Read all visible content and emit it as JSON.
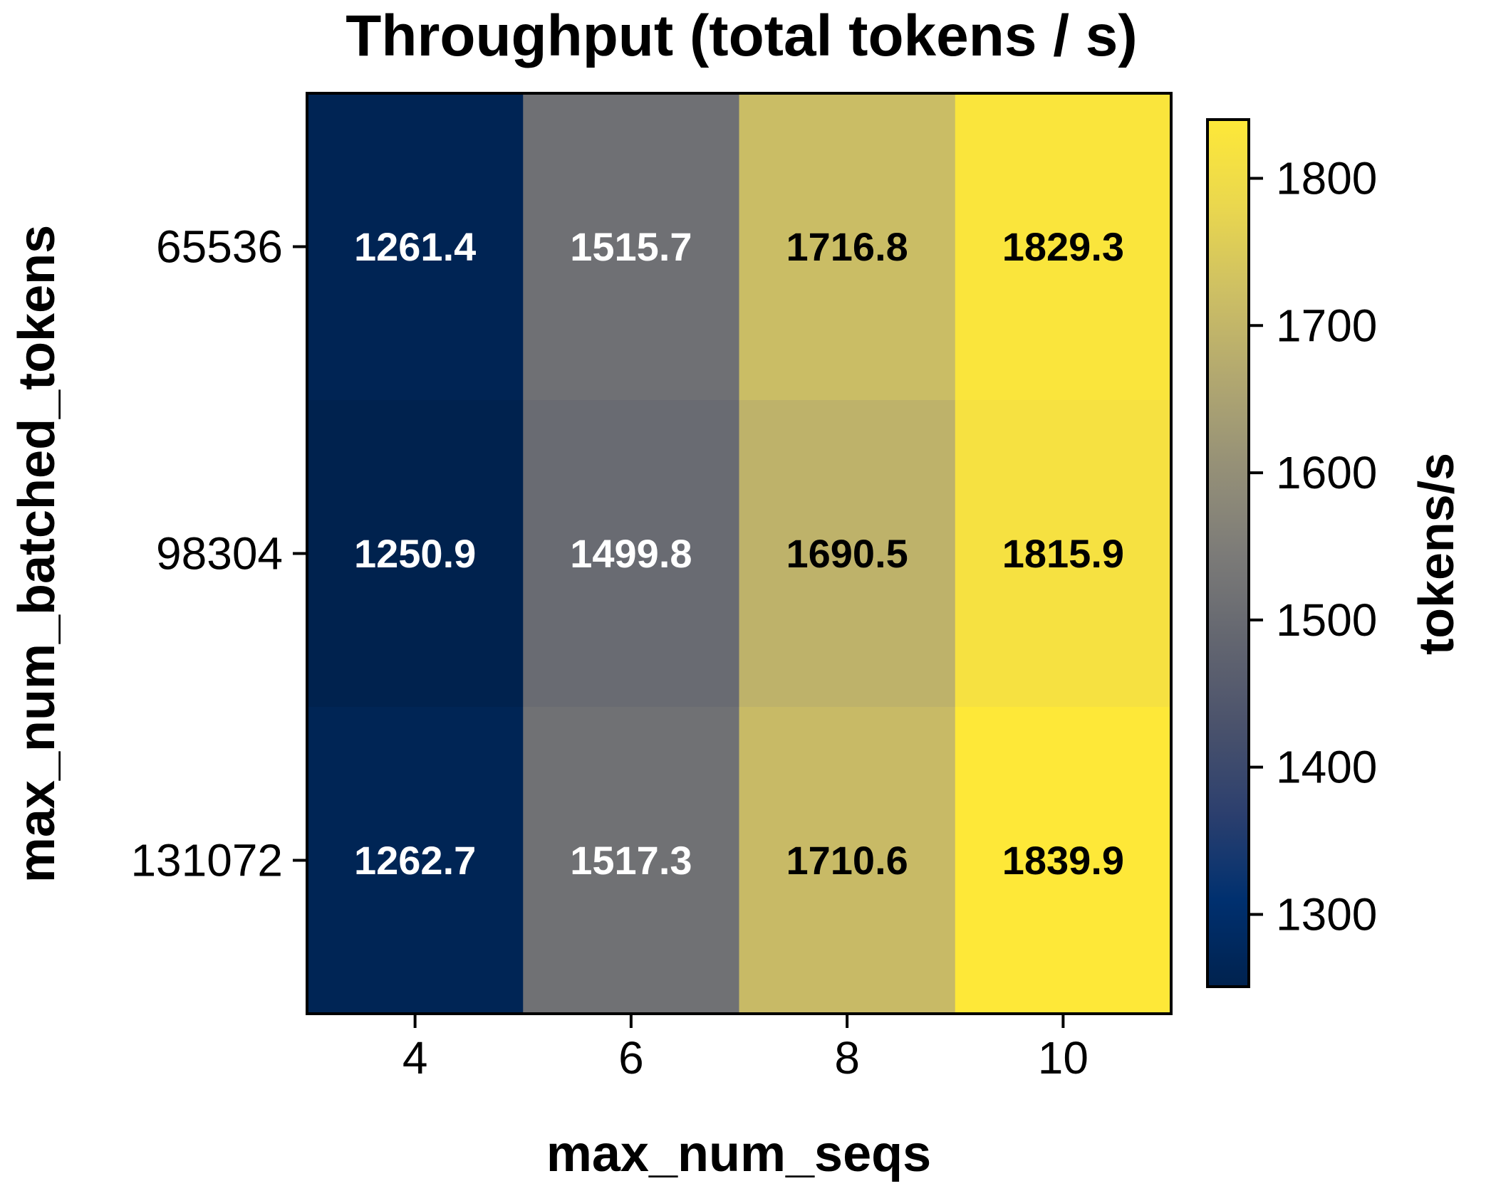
{
  "chart_data": {
    "type": "heatmap",
    "title": "Throughput (total tokens / s)",
    "xlabel": "max_num_seqs",
    "ylabel": "max_num_batched_tokens",
    "x_categories": [
      "4",
      "6",
      "8",
      "10"
    ],
    "y_categories": [
      "65536",
      "98304",
      "131072"
    ],
    "values": [
      [
        1261.4,
        1515.7,
        1716.8,
        1829.3
      ],
      [
        1250.9,
        1499.8,
        1690.5,
        1815.9
      ],
      [
        1262.7,
        1517.3,
        1710.6,
        1839.9
      ]
    ],
    "value_labels": [
      [
        "1261.4",
        "1515.7",
        "1716.8",
        "1829.3"
      ],
      [
        "1250.9",
        "1499.8",
        "1690.5",
        "1815.9"
      ],
      [
        "1262.7",
        "1517.3",
        "1710.6",
        "1839.9"
      ]
    ],
    "colorbar": {
      "label": "tokens/s",
      "colormap": "cividis",
      "range": [
        1250.9,
        1839.9
      ],
      "ticks": [
        1300,
        1400,
        1500,
        1600,
        1700,
        1800
      ],
      "tick_labels": [
        "1300",
        "1400",
        "1500",
        "1600",
        "1700",
        "1800"
      ]
    },
    "annotation_colors": {
      "light": "#ffffff",
      "dark": "#000000"
    }
  }
}
